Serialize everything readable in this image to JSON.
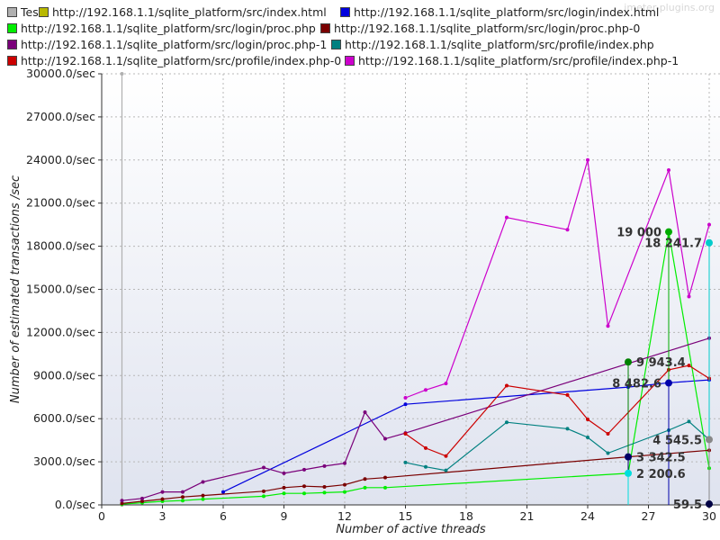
{
  "watermark": "jmeter-plugins.org",
  "chart_data": {
    "type": "line",
    "xlabel": "Number of active threads",
    "ylabel": "Number of estimated transactions /sec",
    "xlim": [
      0,
      30
    ],
    "ylim": [
      0,
      30000
    ],
    "xticks": [
      0,
      3,
      6,
      9,
      12,
      15,
      18,
      21,
      24,
      27,
      30
    ],
    "yticks": [
      0,
      3000,
      6000,
      9000,
      12000,
      15000,
      18000,
      21000,
      24000,
      27000,
      30000
    ],
    "ytick_labels": [
      "0.0/sec",
      "3000.0/sec",
      "6000.0/sec",
      "9000.0/sec",
      "12000.0/sec",
      "15000.0/sec",
      "18000.0/sec",
      "21000.0/sec",
      "24000.0/sec",
      "27000.0/sec",
      "30000.0/sec"
    ],
    "grid": true,
    "legend_position": "top",
    "series": [
      {
        "name": "Test",
        "color": "#b0b0b0",
        "points": [
          [
            1,
            0
          ],
          [
            1,
            30000
          ]
        ]
      },
      {
        "name": "http://192.168.1.1/sqlite_platform/src/index.html",
        "color": "#b8b800",
        "points": []
      },
      {
        "name": "http://192.168.1.1/sqlite_platform/src/login/index.html",
        "color": "#0000dd",
        "points": [
          [
            6,
            900
          ],
          [
            15,
            7000
          ],
          [
            26,
            8200
          ],
          [
            28,
            8500
          ],
          [
            30,
            8700
          ]
        ]
      },
      {
        "name": "http://192.168.1.1/sqlite_platform/src/login/proc.php",
        "color": "#00ee00",
        "points": [
          [
            1,
            50
          ],
          [
            2,
            150
          ],
          [
            3,
            250
          ],
          [
            4,
            300
          ],
          [
            5,
            400
          ],
          [
            8,
            600
          ],
          [
            9,
            800
          ],
          [
            10,
            800
          ],
          [
            11,
            850
          ],
          [
            12,
            900
          ],
          [
            13,
            1200
          ],
          [
            14,
            1200
          ],
          [
            26,
            2200
          ],
          [
            28,
            19000
          ],
          [
            30,
            2550
          ]
        ]
      },
      {
        "name": "http://192.168.1.1/sqlite_platform/src/login/proc.php-0",
        "color": "#7a0000",
        "points": [
          [
            1,
            100
          ],
          [
            2,
            250
          ],
          [
            3,
            400
          ],
          [
            4,
            550
          ],
          [
            5,
            650
          ],
          [
            8,
            950
          ],
          [
            9,
            1200
          ],
          [
            10,
            1300
          ],
          [
            11,
            1250
          ],
          [
            12,
            1400
          ],
          [
            13,
            1800
          ],
          [
            14,
            1900
          ],
          [
            26,
            3342.5
          ],
          [
            30,
            3800
          ]
        ]
      },
      {
        "name": "http://192.168.1.1/sqlite_platform/src/login/proc.php-1",
        "color": "#7a007a",
        "points": [
          [
            1,
            300
          ],
          [
            2,
            450
          ],
          [
            3,
            900
          ],
          [
            4,
            900
          ],
          [
            5,
            1600
          ],
          [
            8,
            2600
          ],
          [
            9,
            2200
          ],
          [
            10,
            2450
          ],
          [
            11,
            2700
          ],
          [
            12,
            2900
          ],
          [
            13,
            6450
          ],
          [
            14,
            4600
          ],
          [
            15,
            5000
          ],
          [
            30,
            11600
          ]
        ]
      },
      {
        "name": "http://192.168.1.1/sqlite_platform/src/profile/index.php",
        "color": "#008080",
        "points": [
          [
            15,
            2950
          ],
          [
            16,
            2650
          ],
          [
            17,
            2400
          ],
          [
            20,
            5750
          ],
          [
            23,
            5300
          ],
          [
            24,
            4700
          ],
          [
            25,
            3600
          ],
          [
            28,
            5200
          ],
          [
            29,
            5800
          ],
          [
            30,
            4545.5
          ]
        ]
      },
      {
        "name": "http://192.168.1.1/sqlite_platform/src/profile/index.php-0",
        "color": "#cc0000",
        "points": [
          [
            15,
            4950
          ],
          [
            16,
            3950
          ],
          [
            17,
            3400
          ],
          [
            20,
            8300
          ],
          [
            23,
            7650
          ],
          [
            24,
            5950
          ],
          [
            25,
            4950
          ],
          [
            28,
            9400
          ],
          [
            29,
            9700
          ],
          [
            30,
            8800
          ]
        ]
      },
      {
        "name": "http://192.168.1.1/sqlite_platform/src/profile/index.php-1",
        "color": "#cc00cc",
        "points": [
          [
            15,
            7450
          ],
          [
            16,
            8000
          ],
          [
            17,
            8450
          ],
          [
            20,
            20000
          ],
          [
            23,
            19150
          ],
          [
            24,
            24000
          ],
          [
            25,
            12450
          ],
          [
            28,
            23300
          ],
          [
            29,
            14500
          ],
          [
            30,
            19500
          ]
        ]
      }
    ],
    "annotations": [
      {
        "text": "19 000",
        "color": "#00aa00",
        "x": 28,
        "y": 19000
      },
      {
        "text": "18 241.7",
        "color": "#00cccc",
        "x": 30,
        "y": 18241.7
      },
      {
        "text": "9 943.4",
        "color": "#008000",
        "x": 26,
        "y": 9943.4
      },
      {
        "text": "8 482.6",
        "color": "#0000aa",
        "x": 28,
        "y": 8482.6
      },
      {
        "text": "4 545.5",
        "color": "#888888",
        "x": 30,
        "y": 4545.5
      },
      {
        "text": "3 342.5",
        "color": "#000066",
        "x": 26,
        "y": 3342.5
      },
      {
        "text": "2 200.6",
        "color": "#00dddd",
        "x": 26,
        "y": 2200.6
      },
      {
        "text": "59.5",
        "color": "#000044",
        "x": 30,
        "y": 59.5
      }
    ]
  }
}
